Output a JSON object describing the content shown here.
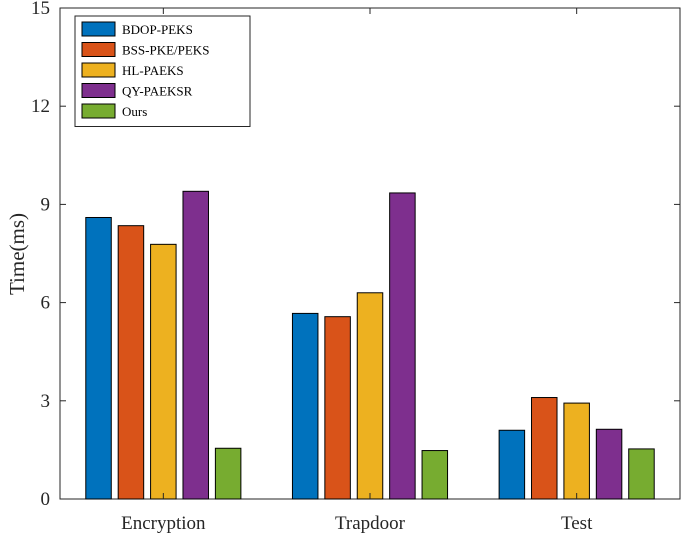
{
  "chart_data": {
    "type": "bar",
    "categories": [
      "Encryption",
      "Trapdoor",
      "Test"
    ],
    "series": [
      {
        "name": "BDOP-PEKS",
        "values": [
          8.6,
          5.67,
          2.1
        ],
        "color": "#0072BD"
      },
      {
        "name": "BSS-PKE/PEKS",
        "values": [
          8.35,
          5.57,
          3.1
        ],
        "color": "#D95319"
      },
      {
        "name": "HL-PAEKS",
        "values": [
          7.78,
          6.3,
          2.93
        ],
        "color": "#EDB120"
      },
      {
        "name": "QY-PAEKSR",
        "values": [
          9.4,
          9.35,
          2.13
        ],
        "color": "#7E2F8E"
      },
      {
        "name": "Ours",
        "values": [
          1.55,
          1.48,
          1.53
        ],
        "color": "#77AC30"
      }
    ],
    "title": "",
    "xlabel": "",
    "ylabel": "Time(ms)",
    "ylim": [
      0,
      15
    ],
    "yticks": [
      0,
      3,
      6,
      9,
      12,
      15
    ],
    "grid": false,
    "legend_position": "top-left"
  }
}
